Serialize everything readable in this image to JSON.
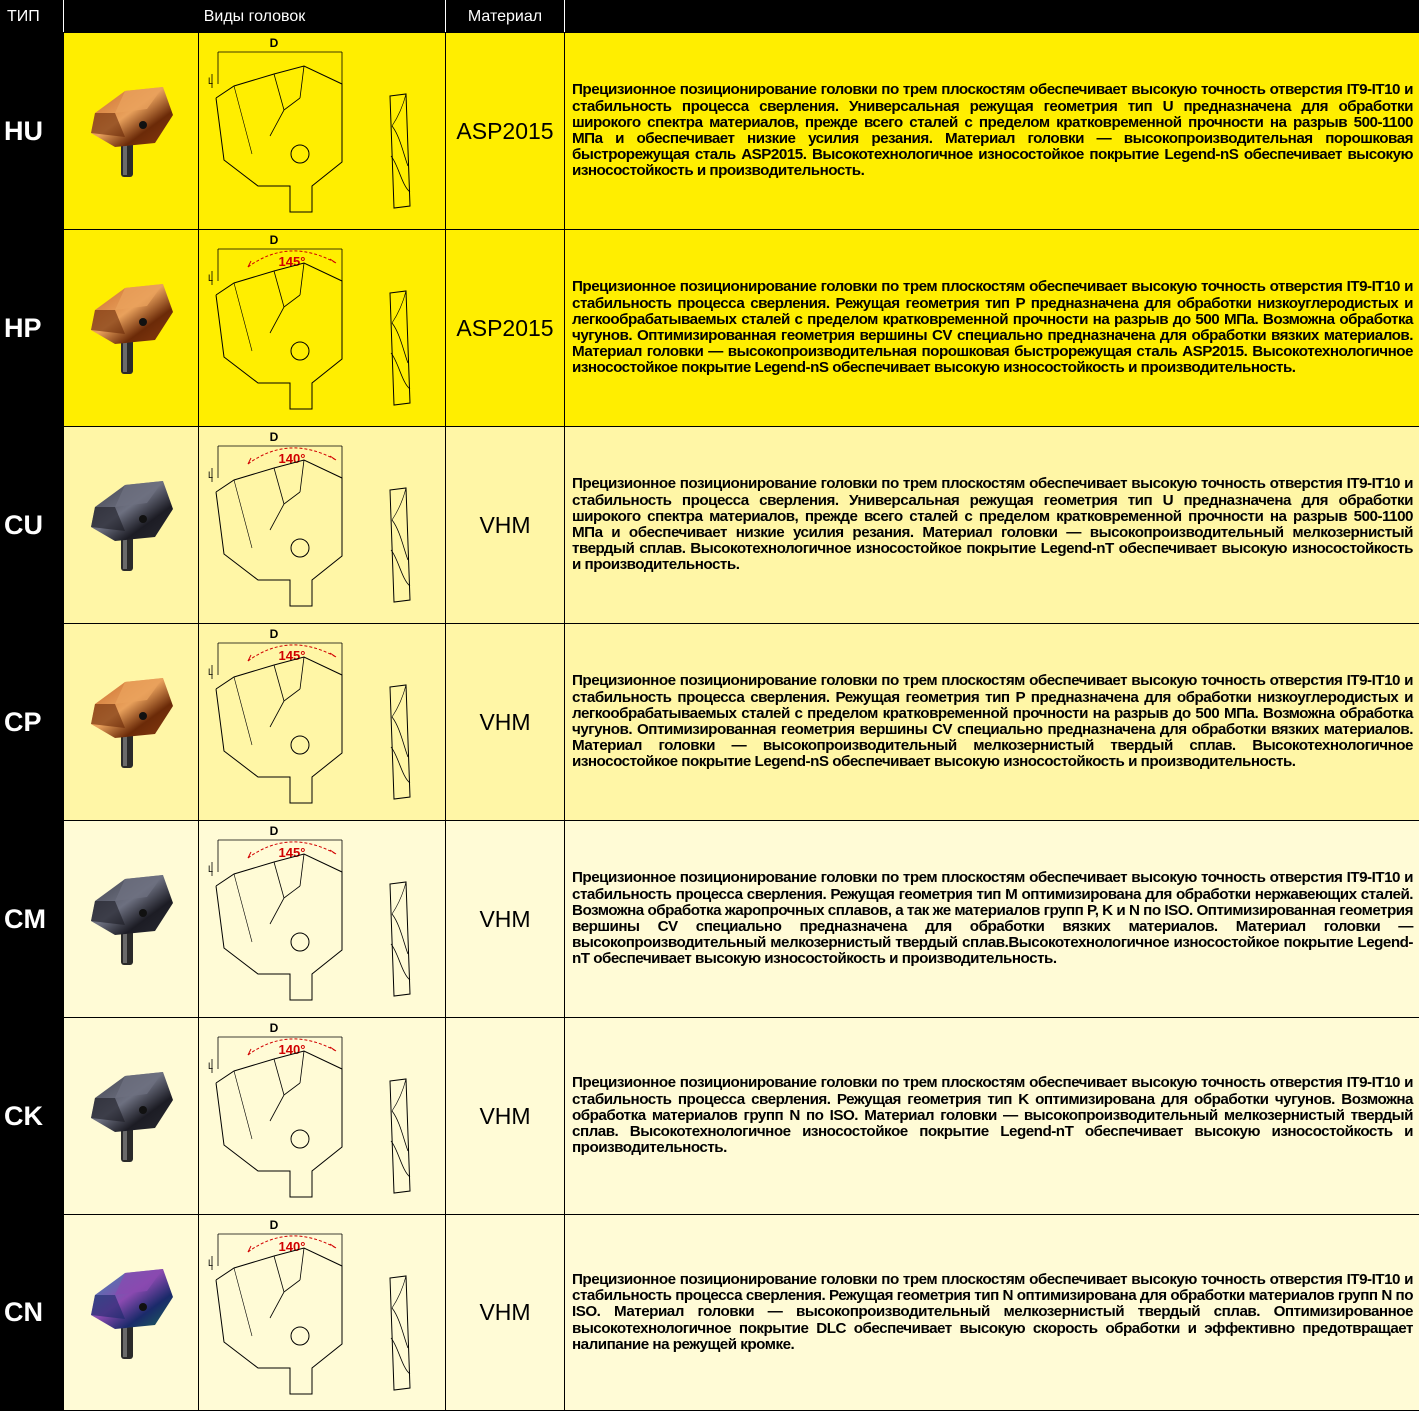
{
  "header": {
    "type": "ТИП",
    "views": "Виды головок",
    "material": "Материал",
    "description": ""
  },
  "drawing_labels": {
    "diameter": "D",
    "length": "L"
  },
  "rows": [
    {
      "type": "HU",
      "angle": "",
      "material": "ASP2015",
      "coating": "gold",
      "band": "bright",
      "description": "Прецизионное позиционирование головки по трем плоскостям обеспечивает высокую точность отверстия IT9-IT10 и стабильность процесса сверления. Универсальная режущая геометрия тип U предназначена для обработки широкого спектра материалов, прежде всего сталей с пределом кратковременной прочности на разрыв 500-1100 МПа и обеспечивает низкие усилия резания. Материал головки — высокопроизводительная порошковая быстрорежущая сталь ASP2015. Высокотехнологичное износостойкое покрытие Legend-nS обеспечивает высокую износостойкость и производительность."
    },
    {
      "type": "HP",
      "angle": "145°",
      "material": "ASP2015",
      "coating": "gold",
      "band": "bright",
      "description": "Прецизионное позиционирование головки по трем плоскостям обеспечивает высокую точность отверстия IT9-IT10 и стабильность процесса сверления. Режущая геометрия тип P предназначена для обработки низкоуглеродистых и легкообрабатываемых сталей с пределом кратковременной прочности на разрыв до 500 МПа. Возможна обработка чугунов. Оптимизированная геометрия вершины CV специально предназначена для обработки вязких материалов. Материал головки — высокопроизводительная порошковая быстрорежущая сталь ASP2015. Высокотехнологичное износостойкое покрытие Legend-nS обеспечивает высокую износостойкость и производительность."
    },
    {
      "type": "CU",
      "angle": "140°",
      "material": "VHM",
      "coating": "gray",
      "band": "mid",
      "description": "Прецизионное позиционирование головки по трем плоскостям обеспечивает высокую точность отверстия IT9-IT10 и стабильность процесса сверления. Универсальная режущая геометрия тип U предназначена для обработки широкого спектра материалов, прежде всего сталей с пределом кратковременной прочности на разрыв 500-1100 МПа и обеспечивает низкие усилия резания. Материал головки — высокопроизводительный мелкозернистый твердый сплав. Высокотехнологичное износостойкое покрытие Legend-nT обеспечивает высокую износостойкость и производительность."
    },
    {
      "type": "CP",
      "angle": "145°",
      "material": "VHM",
      "coating": "gold",
      "band": "mid",
      "description": "Прецизионное позиционирование головки по трем плоскостям обеспечивает высокую точность отверстия IT9-IT10 и стабильность процесса сверления. Режущая геометрия тип P предназначена для обработки низкоуглеродистых и легкообрабатываемых сталей с пределом кратковременной прочности на разрыв до 500 МПа. Возможна обработка чугунов. Оптимизированная геометрия вершины CV специально предназначена для обработки вязких материалов. Материал головки — высокопроизводительный мелкозернистый твердый сплав. Высокотехнологичное износостойкое покрытие Legend-nS обеспечивает высокую износостойкость и производительность."
    },
    {
      "type": "CM",
      "angle": "145°",
      "material": "VHM",
      "coating": "gray",
      "band": "pale",
      "description": "Прецизионное позиционирование головки по трем плоскостям обеспечивает высокую точность отверстия IT9-IT10 и стабильность процесса сверления. Режущая геометрия тип M оптимизирована для обработки нержавеющих сталей. Возможна обработка жаропрочных сплавов, а так же материалов групп P, K и N по ISO. Оптимизированная геометрия вершины CV специально предназначена для обработки вязких материалов. Материал головки — высокопроизводительный мелкозернистый твердый сплав.Высокотехнологичное износостойкое покрытие Legend-nT обеспечивает высокую износостойкость и производительность."
    },
    {
      "type": "CK",
      "angle": "140°",
      "material": "VHM",
      "coating": "gray",
      "band": "pale",
      "description": "Прецизионное позиционирование головки по трем плоскостям обеспечивает высокую точность отверстия IT9-IT10 и стабильность процесса сверления. Режущая геометрия тип K оптимизирована для обработки чугунов. Возможна обработка материалов групп N по ISO. Материал головки — высокопроизводительный мелкозернистый твердый сплав. Высокотехнологичное износостойкое покрытие Legend-nT обеспечивает высокую износостойкость и производительность."
    },
    {
      "type": "CN",
      "angle": "140°",
      "material": "VHM",
      "coating": "rainbow",
      "band": "pale",
      "description": "Прецизионное позиционирование головки по трем плоскостям обеспечивает высокую точность отверстия IT9-IT10 и стабильность процесса сверления. Режущая геометрия тип N оптимизирована для обработки материалов групп N по ISO. Материал головки — высокопроизводительный мелкозернистый твердый сплав. Оптимизированное высокотехнологичное покрытие DLC обеспечивает высокую скорость обработки и эффективно предотвращает налипание на режущей кромке."
    }
  ],
  "colors": {
    "band_bright": "#ffee00",
    "band_mid": "#fff6a6",
    "band_pale": "#fffbd6",
    "angle_red": "#d10000",
    "header_bg": "#000000"
  }
}
